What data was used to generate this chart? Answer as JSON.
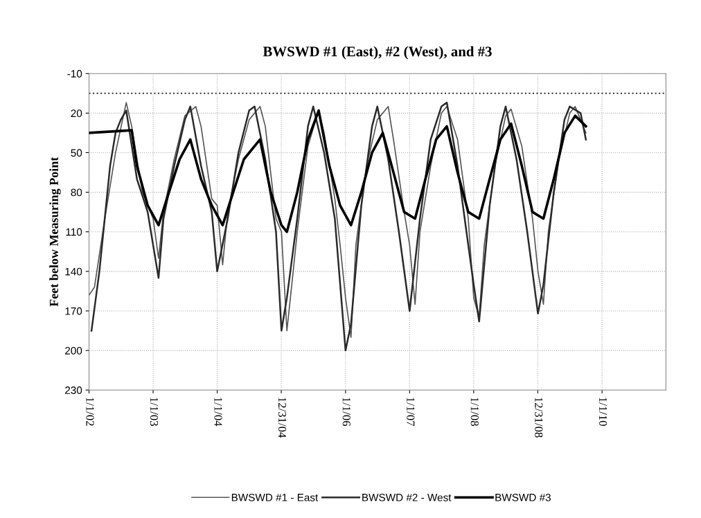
{
  "chart_data": {
    "type": "line",
    "title": "BWSWD #1 (East), #2 (West), and #3",
    "ylabel": "Feet below Measuring Point",
    "xlim": [
      "2002-01-01",
      "2010-12-31"
    ],
    "xticks": [
      {
        "value": "2002-01-01",
        "label": "1/1/02"
      },
      {
        "value": "2003-01-01",
        "label": "1/1/03"
      },
      {
        "value": "2004-01-01",
        "label": "1/1/04"
      },
      {
        "value": "2004-12-31",
        "label": "12/31/04"
      },
      {
        "value": "2006-01-01",
        "label": "1/1/06"
      },
      {
        "value": "2007-01-01",
        "label": "1/1/07"
      },
      {
        "value": "2008-01-01",
        "label": "1/1/08"
      },
      {
        "value": "2008-12-31",
        "label": "12/31/08"
      },
      {
        "value": "2010-01-01",
        "label": "1/1/10"
      }
    ],
    "ylim": [
      230,
      -10
    ],
    "yticks": [
      -10,
      20,
      50,
      80,
      110,
      140,
      170,
      200,
      230
    ],
    "grid": true,
    "legend": "bottom",
    "marker": "none",
    "line_style": "solid",
    "ref_lines": [
      {
        "axis": "y",
        "value": 5,
        "color": "#333333",
        "line_style": "dotted"
      }
    ],
    "series": [
      {
        "name": "BWSWD #1 - East",
        "color": "#555555",
        "x": [
          "2002-01",
          "2002-02",
          "2002-04",
          "2002-06",
          "2002-08",
          "2002-09",
          "2002-11",
          "2002-12",
          "2003-01",
          "2003-02",
          "2003-03",
          "2003-05",
          "2003-07",
          "2003-09",
          "2003-10",
          "2003-12",
          "2004-01",
          "2004-02",
          "2004-03",
          "2004-05",
          "2004-07",
          "2004-09",
          "2004-10",
          "2004-12",
          "2005-01",
          "2005-02",
          "2005-03",
          "2005-04",
          "2005-06",
          "2005-08",
          "2005-09",
          "2005-11",
          "2005-12",
          "2006-01",
          "2006-02",
          "2006-03",
          "2006-05",
          "2006-07",
          "2006-09",
          "2006-10",
          "2006-12",
          "2007-01",
          "2007-02",
          "2007-03",
          "2007-05",
          "2007-07",
          "2007-08",
          "2007-10",
          "2007-12",
          "2008-01",
          "2008-02",
          "2008-03",
          "2008-05",
          "2008-07",
          "2008-08",
          "2008-10",
          "2008-12",
          "2009-01",
          "2009-02",
          "2009-03",
          "2009-05",
          "2009-07",
          "2009-08",
          "2009-10"
        ],
        "values": [
          158,
          152,
          100,
          50,
          12,
          30,
          80,
          90,
          100,
          130,
          95,
          55,
          22,
          15,
          30,
          85,
          90,
          135,
          95,
          55,
          25,
          15,
          30,
          100,
          110,
          185,
          150,
          110,
          45,
          18,
          35,
          85,
          120,
          160,
          190,
          120,
          60,
          25,
          15,
          40,
          95,
          120,
          165,
          110,
          60,
          20,
          15,
          40,
          100,
          160,
          175,
          120,
          60,
          22,
          17,
          45,
          100,
          140,
          165,
          110,
          55,
          20,
          15,
          35
        ]
      },
      {
        "name": "BWSWD #2 - West",
        "color": "#2a2a2a",
        "x": [
          "2002-01-15",
          "2002-03",
          "2002-05",
          "2002-06",
          "2002-07",
          "2002-08",
          "2002-10",
          "2002-12",
          "2003-02",
          "2003-03",
          "2003-05",
          "2003-07",
          "2003-08",
          "2003-10",
          "2003-12",
          "2004-01",
          "2004-03",
          "2004-05",
          "2004-07",
          "2004-08",
          "2004-10",
          "2004-12",
          "2005-01",
          "2005-02",
          "2005-04",
          "2005-06",
          "2005-07",
          "2005-09",
          "2005-11",
          "2006-01",
          "2006-02",
          "2006-04",
          "2006-06",
          "2006-07",
          "2006-09",
          "2006-11",
          "2007-01",
          "2007-03",
          "2007-05",
          "2007-07",
          "2007-08",
          "2007-10",
          "2007-12",
          "2008-01",
          "2008-02",
          "2008-04",
          "2008-06",
          "2008-07",
          "2008-09",
          "2008-11",
          "2009-01",
          "2009-02",
          "2009-04",
          "2009-06",
          "2009-07",
          "2009-09",
          "2009-10"
        ],
        "values": [
          185,
          140,
          60,
          35,
          25,
          18,
          70,
          95,
          145,
          100,
          60,
          25,
          15,
          60,
          95,
          140,
          100,
          50,
          18,
          15,
          55,
          110,
          185,
          160,
          100,
          30,
          15,
          50,
          100,
          200,
          180,
          90,
          30,
          15,
          55,
          110,
          170,
          100,
          40,
          15,
          12,
          60,
          120,
          150,
          178,
          90,
          30,
          15,
          55,
          110,
          172,
          150,
          80,
          25,
          15,
          20,
          40
        ]
      },
      {
        "name": "BWSWD #3",
        "color": "#000000",
        "x": [
          "2002-01",
          "2002-09",
          "2002-10",
          "2002-12",
          "2003-02",
          "2003-04",
          "2003-06",
          "2003-08",
          "2003-10",
          "2003-12",
          "2004-02",
          "2004-04",
          "2004-06",
          "2004-09",
          "2004-11",
          "2005-01",
          "2005-02",
          "2005-04",
          "2005-06",
          "2005-08",
          "2005-10",
          "2005-12",
          "2006-02",
          "2006-04",
          "2006-06",
          "2006-08",
          "2006-10",
          "2006-12",
          "2007-02",
          "2007-04",
          "2007-06",
          "2007-08",
          "2007-10",
          "2007-12",
          "2008-02",
          "2008-04",
          "2008-06",
          "2008-08",
          "2008-10",
          "2008-12",
          "2009-02",
          "2009-04",
          "2009-06",
          "2009-08",
          "2009-10"
        ],
        "values": [
          35,
          33,
          60,
          90,
          105,
          80,
          55,
          40,
          70,
          90,
          105,
          80,
          55,
          40,
          80,
          105,
          110,
          80,
          40,
          18,
          60,
          90,
          105,
          80,
          50,
          35,
          65,
          95,
          100,
          70,
          40,
          30,
          65,
          95,
          100,
          70,
          40,
          28,
          60,
          95,
          100,
          70,
          35,
          22,
          30
        ]
      }
    ]
  }
}
